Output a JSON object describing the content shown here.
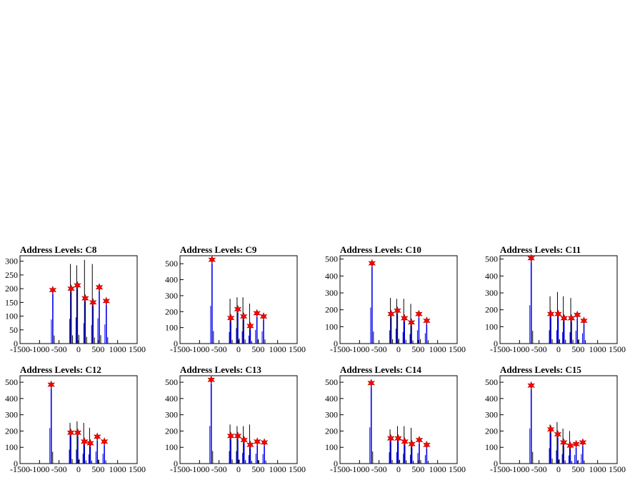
{
  "chart_data": [
    {
      "type": "bar",
      "title": "Address Levels: C8",
      "xlim": [
        -1500,
        1500
      ],
      "ylim": [
        0,
        320
      ],
      "xticks": [
        -1500,
        -1000,
        -500,
        0,
        500,
        1000,
        1500
      ],
      "yticks": [
        0,
        50,
        100,
        150,
        200,
        250,
        300
      ],
      "peaks": [
        {
          "x": -660,
          "y": 195
        },
        {
          "x": -190,
          "y": 200
        },
        {
          "x": -30,
          "y": 212
        },
        {
          "x": 170,
          "y": 165
        },
        {
          "x": 370,
          "y": 150
        },
        {
          "x": 530,
          "y": 205
        },
        {
          "x": 710,
          "y": 155
        }
      ],
      "spikes": [
        {
          "x": -190,
          "y": 290
        },
        {
          "x": -30,
          "y": 285
        },
        {
          "x": 170,
          "y": 305
        },
        {
          "x": 370,
          "y": 290
        }
      ]
    },
    {
      "type": "bar",
      "title": "Address Levels: C9",
      "xlim": [
        -1500,
        1500
      ],
      "ylim": [
        0,
        550
      ],
      "xticks": [
        -1500,
        -1000,
        -500,
        0,
        500,
        1000,
        1500
      ],
      "yticks": [
        0,
        100,
        200,
        300,
        400,
        500
      ],
      "peaks": [
        {
          "x": -680,
          "y": 525
        },
        {
          "x": -200,
          "y": 160
        },
        {
          "x": -20,
          "y": 215
        },
        {
          "x": 130,
          "y": 170
        },
        {
          "x": 300,
          "y": 110
        },
        {
          "x": 470,
          "y": 190
        },
        {
          "x": 640,
          "y": 170
        }
      ],
      "spikes": [
        {
          "x": -200,
          "y": 280
        },
        {
          "x": -20,
          "y": 290
        },
        {
          "x": 130,
          "y": 290
        },
        {
          "x": 300,
          "y": 250
        }
      ]
    },
    {
      "type": "bar",
      "title": "Address Levels: C10",
      "xlim": [
        -1500,
        1500
      ],
      "ylim": [
        0,
        520
      ],
      "xticks": [
        -1500,
        -1000,
        -500,
        0,
        500,
        1000,
        1500
      ],
      "yticks": [
        0,
        100,
        200,
        300,
        400,
        500
      ],
      "peaks": [
        {
          "x": -680,
          "y": 475
        },
        {
          "x": -190,
          "y": 175
        },
        {
          "x": -30,
          "y": 195
        },
        {
          "x": 150,
          "y": 150
        },
        {
          "x": 330,
          "y": 125
        },
        {
          "x": 520,
          "y": 175
        },
        {
          "x": 720,
          "y": 135
        }
      ],
      "spikes": [
        {
          "x": -190,
          "y": 270
        },
        {
          "x": -30,
          "y": 265
        },
        {
          "x": 150,
          "y": 265
        },
        {
          "x": 330,
          "y": 235
        }
      ]
    },
    {
      "type": "bar",
      "title": "Address Levels: C11",
      "xlim": [
        -1500,
        1500
      ],
      "ylim": [
        0,
        520
      ],
      "xticks": [
        -1500,
        -1000,
        -500,
        0,
        500,
        1000,
        1500
      ],
      "yticks": [
        0,
        100,
        200,
        300,
        400,
        500
      ],
      "peaks": [
        {
          "x": -700,
          "y": 505
        },
        {
          "x": -200,
          "y": 175
        },
        {
          "x": -10,
          "y": 175
        },
        {
          "x": 140,
          "y": 150
        },
        {
          "x": 330,
          "y": 150
        },
        {
          "x": 480,
          "y": 170
        },
        {
          "x": 650,
          "y": 135
        }
      ],
      "spikes": [
        {
          "x": -200,
          "y": 280
        },
        {
          "x": -10,
          "y": 305
        },
        {
          "x": 140,
          "y": 280
        },
        {
          "x": 330,
          "y": 270
        }
      ]
    },
    {
      "type": "bar",
      "title": "Address Levels: C12",
      "xlim": [
        -1500,
        1500
      ],
      "ylim": [
        0,
        540
      ],
      "xticks": [
        -1500,
        -1000,
        -500,
        0,
        500,
        1000,
        1500
      ],
      "yticks": [
        0,
        100,
        200,
        300,
        400,
        500
      ],
      "peaks": [
        {
          "x": -700,
          "y": 485
        },
        {
          "x": -200,
          "y": 190
        },
        {
          "x": -20,
          "y": 190
        },
        {
          "x": 150,
          "y": 135
        },
        {
          "x": 300,
          "y": 125
        },
        {
          "x": 480,
          "y": 165
        },
        {
          "x": 660,
          "y": 135
        }
      ],
      "spikes": [
        {
          "x": -200,
          "y": 250
        },
        {
          "x": -20,
          "y": 260
        },
        {
          "x": 150,
          "y": 250
        },
        {
          "x": 300,
          "y": 220
        }
      ]
    },
    {
      "type": "bar",
      "title": "Address Levels: C13",
      "xlim": [
        -1500,
        1500
      ],
      "ylim": [
        0,
        540
      ],
      "xticks": [
        -1500,
        -1000,
        -500,
        0,
        500,
        1000,
        1500
      ],
      "yticks": [
        0,
        100,
        200,
        300,
        400,
        500
      ],
      "peaks": [
        {
          "x": -700,
          "y": 515
        },
        {
          "x": -200,
          "y": 170
        },
        {
          "x": -20,
          "y": 170
        },
        {
          "x": 140,
          "y": 145
        },
        {
          "x": 300,
          "y": 115
        },
        {
          "x": 480,
          "y": 135
        },
        {
          "x": 660,
          "y": 130
        }
      ],
      "spikes": [
        {
          "x": -200,
          "y": 240
        },
        {
          "x": -20,
          "y": 230
        },
        {
          "x": 140,
          "y": 230
        },
        {
          "x": 300,
          "y": 240
        }
      ]
    },
    {
      "type": "bar",
      "title": "Address Levels: C14",
      "xlim": [
        -1500,
        1500
      ],
      "ylim": [
        0,
        540
      ],
      "xticks": [
        -1500,
        -1000,
        -500,
        0,
        500,
        1000,
        1500
      ],
      "yticks": [
        0,
        100,
        200,
        300,
        400,
        500
      ],
      "peaks": [
        {
          "x": -700,
          "y": 495
        },
        {
          "x": -200,
          "y": 155
        },
        {
          "x": -10,
          "y": 155
        },
        {
          "x": 160,
          "y": 135
        },
        {
          "x": 340,
          "y": 120
        },
        {
          "x": 530,
          "y": 145
        },
        {
          "x": 720,
          "y": 115
        }
      ],
      "spikes": [
        {
          "x": -200,
          "y": 210
        },
        {
          "x": -10,
          "y": 230
        },
        {
          "x": 160,
          "y": 230
        },
        {
          "x": 340,
          "y": 220
        }
      ]
    },
    {
      "type": "bar",
      "title": "Address Levels: C15",
      "xlim": [
        -1500,
        1500
      ],
      "ylim": [
        0,
        540
      ],
      "xticks": [
        -1500,
        -1000,
        -500,
        0,
        500,
        1000,
        1500
      ],
      "yticks": [
        0,
        100,
        200,
        300,
        400,
        500
      ],
      "peaks": [
        {
          "x": -700,
          "y": 480
        },
        {
          "x": -200,
          "y": 210
        },
        {
          "x": -20,
          "y": 180
        },
        {
          "x": 130,
          "y": 130
        },
        {
          "x": 300,
          "y": 110
        },
        {
          "x": 450,
          "y": 120
        },
        {
          "x": 620,
          "y": 130
        }
      ],
      "spikes": [
        {
          "x": -200,
          "y": 240
        },
        {
          "x": -20,
          "y": 255
        },
        {
          "x": 130,
          "y": 215
        },
        {
          "x": 300,
          "y": 200
        }
      ]
    }
  ]
}
